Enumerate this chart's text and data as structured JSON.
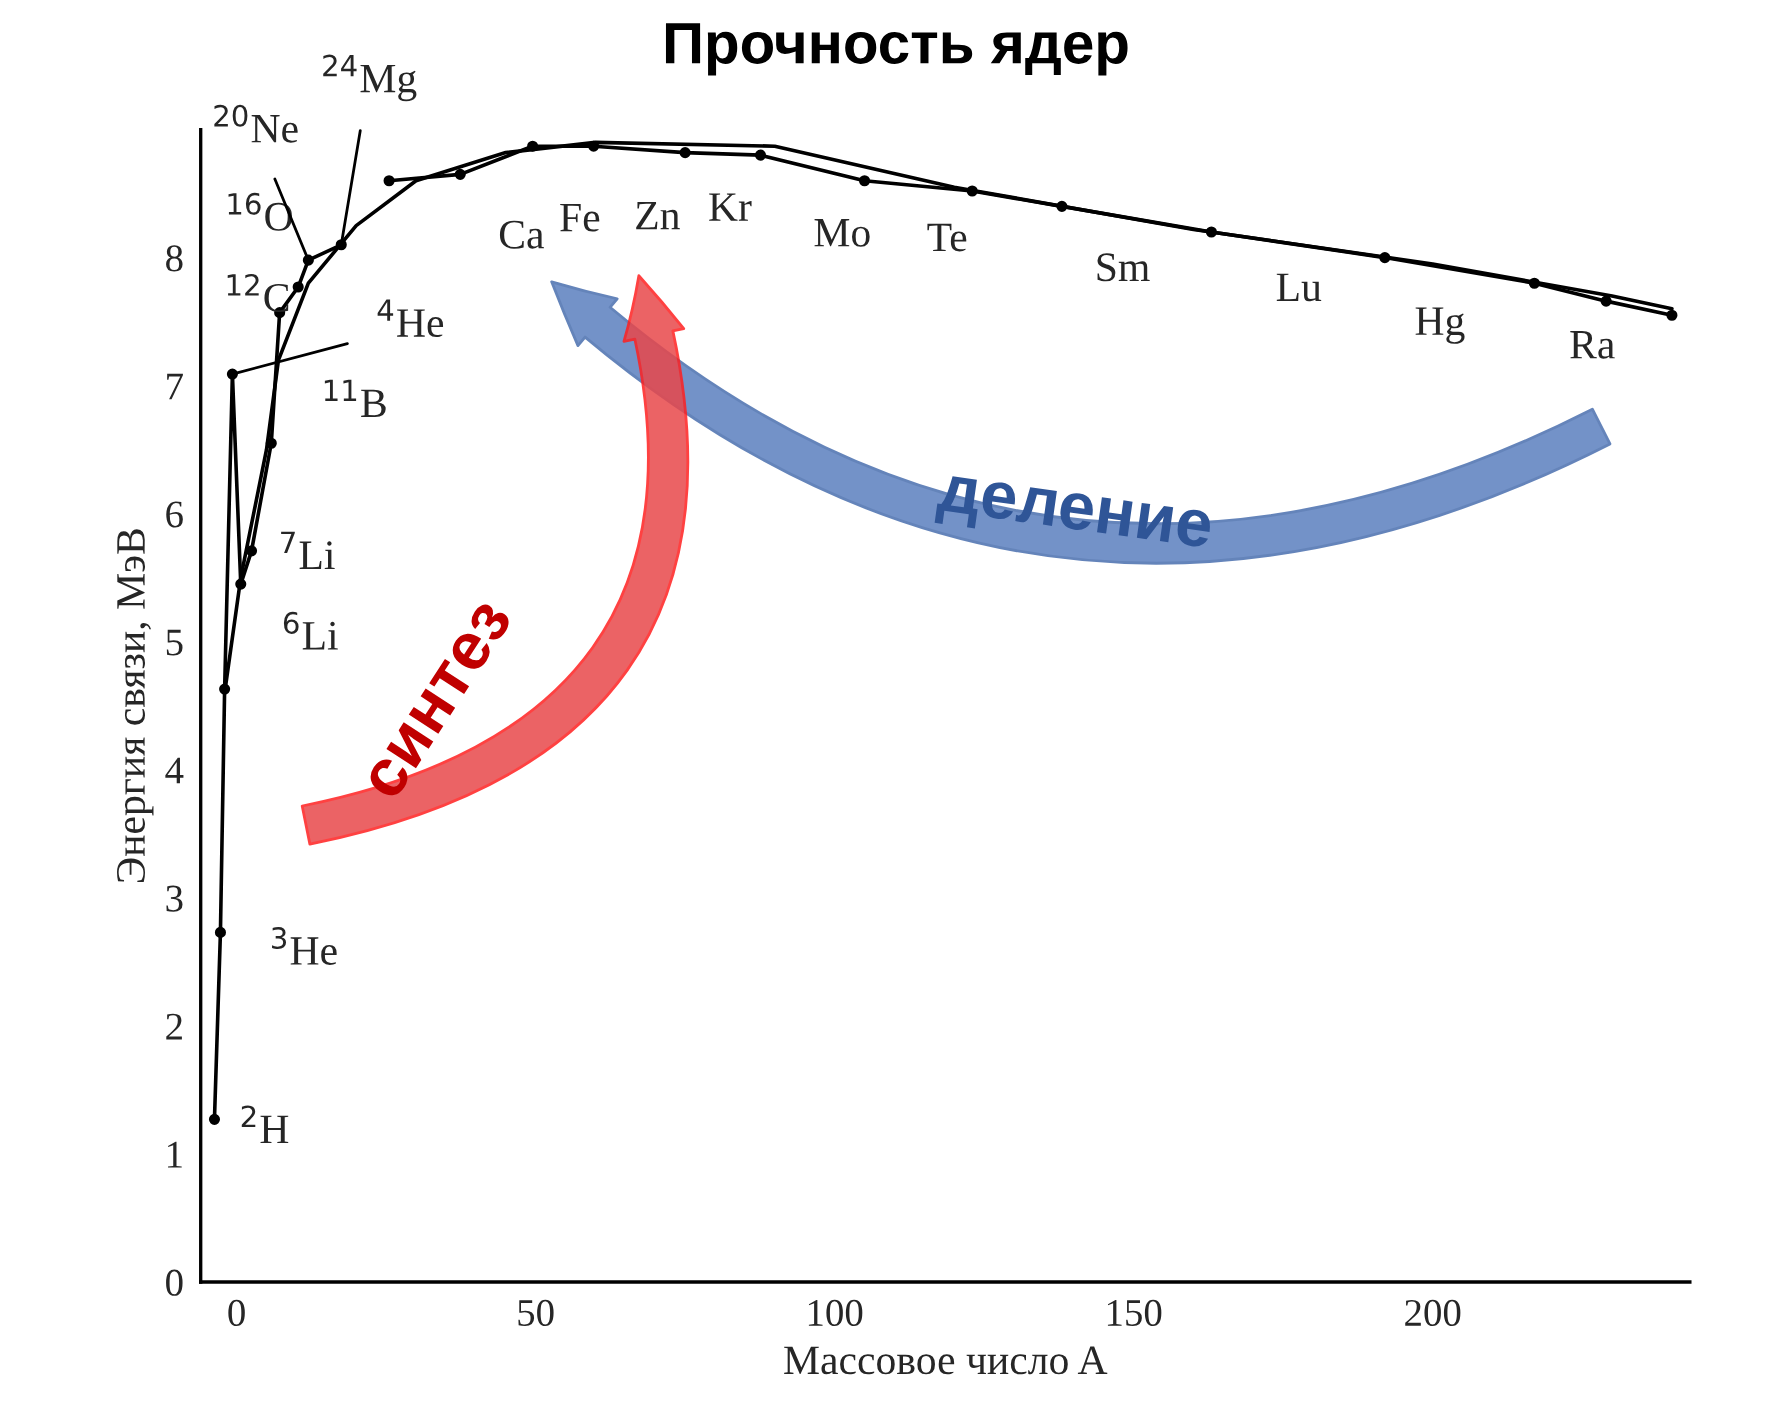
{
  "chart_data": {
    "type": "line",
    "title": "Прочность ядер",
    "xlabel": "Массовое число A",
    "ylabel": "Энергия связи, МэВ",
    "xlim": [
      -6,
      243
    ],
    "ylim": [
      0,
      9
    ],
    "xticks": [
      0,
      50,
      100,
      150,
      200
    ],
    "yticks": [
      0,
      1,
      2,
      3,
      4,
      5,
      6,
      7,
      8
    ],
    "grid": false,
    "legend": false,
    "series": [
      {
        "color": "#000000",
        "marker": "circle",
        "x": [
          -3.7,
          -2.7,
          -2.0,
          -0.7,
          0.7,
          2.5,
          5.8,
          7.2,
          10.3,
          12,
          17.5
        ],
        "values": [
          1.27,
          2.73,
          4.63,
          7.09,
          5.45,
          5.71,
          6.55,
          7.57,
          7.77,
          7.98,
          8.1
        ]
      },
      {
        "color": "#000000",
        "marker": "circle",
        "x": [
          25.5,
          37.4,
          49.5,
          59.7,
          75,
          87.6,
          105,
          123,
          138,
          163,
          192,
          217,
          229,
          240
        ],
        "values": [
          8.6,
          8.65,
          8.87,
          8.87,
          8.82,
          8.8,
          8.6,
          8.52,
          8.4,
          8.2,
          8.0,
          7.8,
          7.66,
          7.55
        ]
      },
      {
        "color": "#000000",
        "marker": "none",
        "x": [
          -2,
          0.7,
          5,
          7,
          12,
          20,
          30,
          45,
          60,
          90,
          120,
          160,
          200,
          230,
          240
        ],
        "values": [
          4.6,
          5.5,
          6.5,
          7.2,
          7.8,
          8.25,
          8.6,
          8.82,
          8.9,
          8.87,
          8.55,
          8.22,
          7.95,
          7.7,
          7.6
        ]
      }
    ],
    "annotations": [
      {
        "text": "$^{2}$H",
        "x": -3.7,
        "y": 1.27
      },
      {
        "text": "$^{3}$He",
        "x": -2.7,
        "y": 2.73
      },
      {
        "text": "$^{6}$Li",
        "x": 0.7,
        "y": 5.45
      },
      {
        "text": "$^{7}$Li",
        "x": 2.5,
        "y": 5.71
      },
      {
        "text": "$^{11}$B",
        "x": 5.8,
        "y": 6.55
      },
      {
        "text": "$^{4}$He",
        "x": -0.7,
        "y": 7.09
      },
      {
        "text": "$^{12}$C",
        "x": 7.2,
        "y": 7.57
      },
      {
        "text": "$^{16}$O",
        "x": 10.3,
        "y": 7.77
      },
      {
        "text": "$^{20}$Ne",
        "x": 12,
        "y": 7.98
      },
      {
        "text": "$^{24}$Mg",
        "x": 17.5,
        "y": 8.1
      },
      {
        "text": "Ca",
        "x": 37.4,
        "y": 8.65
      },
      {
        "text": "Fe",
        "x": 49.5,
        "y": 8.87
      },
      {
        "text": "Zn",
        "x": 75,
        "y": 8.82
      },
      {
        "text": "Kr",
        "x": 87.6,
        "y": 8.8
      },
      {
        "text": "Mo",
        "x": 105,
        "y": 8.6
      },
      {
        "text": "Te",
        "x": 123,
        "y": 8.52
      },
      {
        "text": "Sm",
        "x": 163,
        "y": 8.2
      },
      {
        "text": "Lu",
        "x": 192,
        "y": 8.0
      },
      {
        "text": "Hg",
        "x": 217,
        "y": 7.8
      },
      {
        "text": "Ra",
        "x": 229,
        "y": 7.66
      },
      "синтез",
      "деление"
    ]
  }
}
